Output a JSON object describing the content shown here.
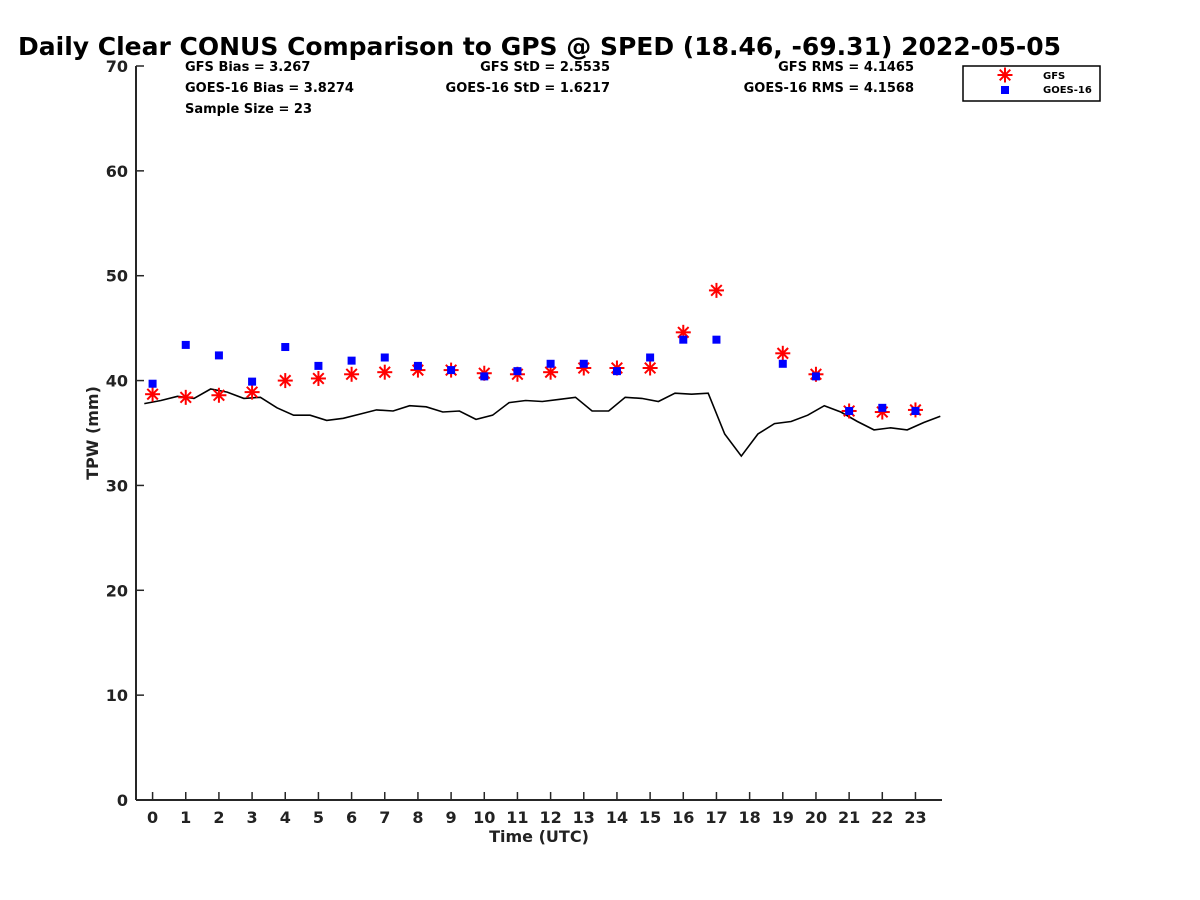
{
  "chart_data": {
    "type": "scatter",
    "title": "Daily Clear CONUS Comparison to GPS @ SPED (18.46, -69.31) 2022-05-05",
    "xlabel": "Time (UTC)",
    "ylabel": "TPW (mm)",
    "xlim": [
      -0.5,
      23.8
    ],
    "ylim": [
      0,
      70
    ],
    "x_ticks": [
      "0",
      "1",
      "2",
      "3",
      "4",
      "5",
      "6",
      "7",
      "8",
      "9",
      "10",
      "11",
      "12",
      "13",
      "14",
      "15",
      "16",
      "17",
      "18",
      "19",
      "20",
      "21",
      "22",
      "23"
    ],
    "y_ticks": [
      "0",
      "10",
      "20",
      "30",
      "40",
      "50",
      "60",
      "70"
    ],
    "grid": false,
    "legend_position": "top-right",
    "stats": {
      "gfs_bias": "GFS Bias = 3.267",
      "goes_bias": "GOES-16 Bias = 3.8274",
      "sample_size": "Sample Size = 23",
      "gfs_std": "GFS StD = 2.5535",
      "goes_std": "GOES-16 StD = 1.6217",
      "gfs_rms": "GFS RMS = 4.1465",
      "goes_rms": "GOES-16 RMS = 4.1568"
    },
    "series": [
      {
        "name": "GFS",
        "marker": "asterisk",
        "color": "#ff0000",
        "x": [
          0,
          1,
          2,
          3,
          4,
          5,
          6,
          7,
          8,
          9,
          10,
          11,
          12,
          13,
          14,
          15,
          16,
          17,
          19,
          20,
          21,
          22,
          23
        ],
        "y": [
          38.7,
          38.4,
          38.6,
          38.9,
          40.0,
          40.2,
          40.6,
          40.8,
          41.0,
          41.0,
          40.7,
          40.6,
          40.8,
          41.2,
          41.2,
          41.2,
          44.6,
          48.6,
          42.6,
          40.6,
          37.1,
          37.0,
          37.2
        ]
      },
      {
        "name": "GOES-16",
        "marker": "square",
        "color": "#0000ff",
        "x": [
          0,
          1,
          2,
          3,
          4,
          5,
          6,
          7,
          8,
          9,
          10,
          11,
          12,
          13,
          14,
          15,
          16,
          17,
          19,
          20,
          21,
          22,
          23
        ],
        "y": [
          39.7,
          43.4,
          42.4,
          39.9,
          43.2,
          41.4,
          41.9,
          42.2,
          41.4,
          41.0,
          40.4,
          40.9,
          41.6,
          41.6,
          40.9,
          42.2,
          43.9,
          43.9,
          41.6,
          40.4,
          37.1,
          37.4,
          37.1
        ]
      }
    ],
    "gps_line": {
      "color": "#000000",
      "x": [
        -0.25,
        0.25,
        0.75,
        1.25,
        1.75,
        2.25,
        2.75,
        3.25,
        3.75,
        4.25,
        4.75,
        5.25,
        5.75,
        6.25,
        6.75,
        7.25,
        7.75,
        8.25,
        8.75,
        9.25,
        9.75,
        10.25,
        10.75,
        11.25,
        11.75,
        12.25,
        12.75,
        13.25,
        13.75,
        14.25,
        14.75,
        15.25,
        15.75,
        16.25,
        16.75,
        17.25,
        17.75,
        18.25,
        18.75,
        19.25,
        19.75,
        20.25,
        20.75,
        21.25,
        21.75,
        22.25,
        22.75,
        23.25,
        23.75
      ],
      "y": [
        37.8,
        38.1,
        38.5,
        38.3,
        39.2,
        38.9,
        38.3,
        38.4,
        37.4,
        36.7,
        36.7,
        36.2,
        36.4,
        36.8,
        37.2,
        37.1,
        37.6,
        37.5,
        37.0,
        37.1,
        36.3,
        36.7,
        37.9,
        38.1,
        38.0,
        38.2,
        38.4,
        37.1,
        37.1,
        38.4,
        38.3,
        38.0,
        38.8,
        38.7,
        38.8,
        34.9,
        32.8,
        34.9,
        35.9,
        36.1,
        36.7,
        37.6,
        37.0,
        36.1,
        35.3,
        35.5,
        35.3,
        36.0,
        36.6
      ]
    }
  }
}
